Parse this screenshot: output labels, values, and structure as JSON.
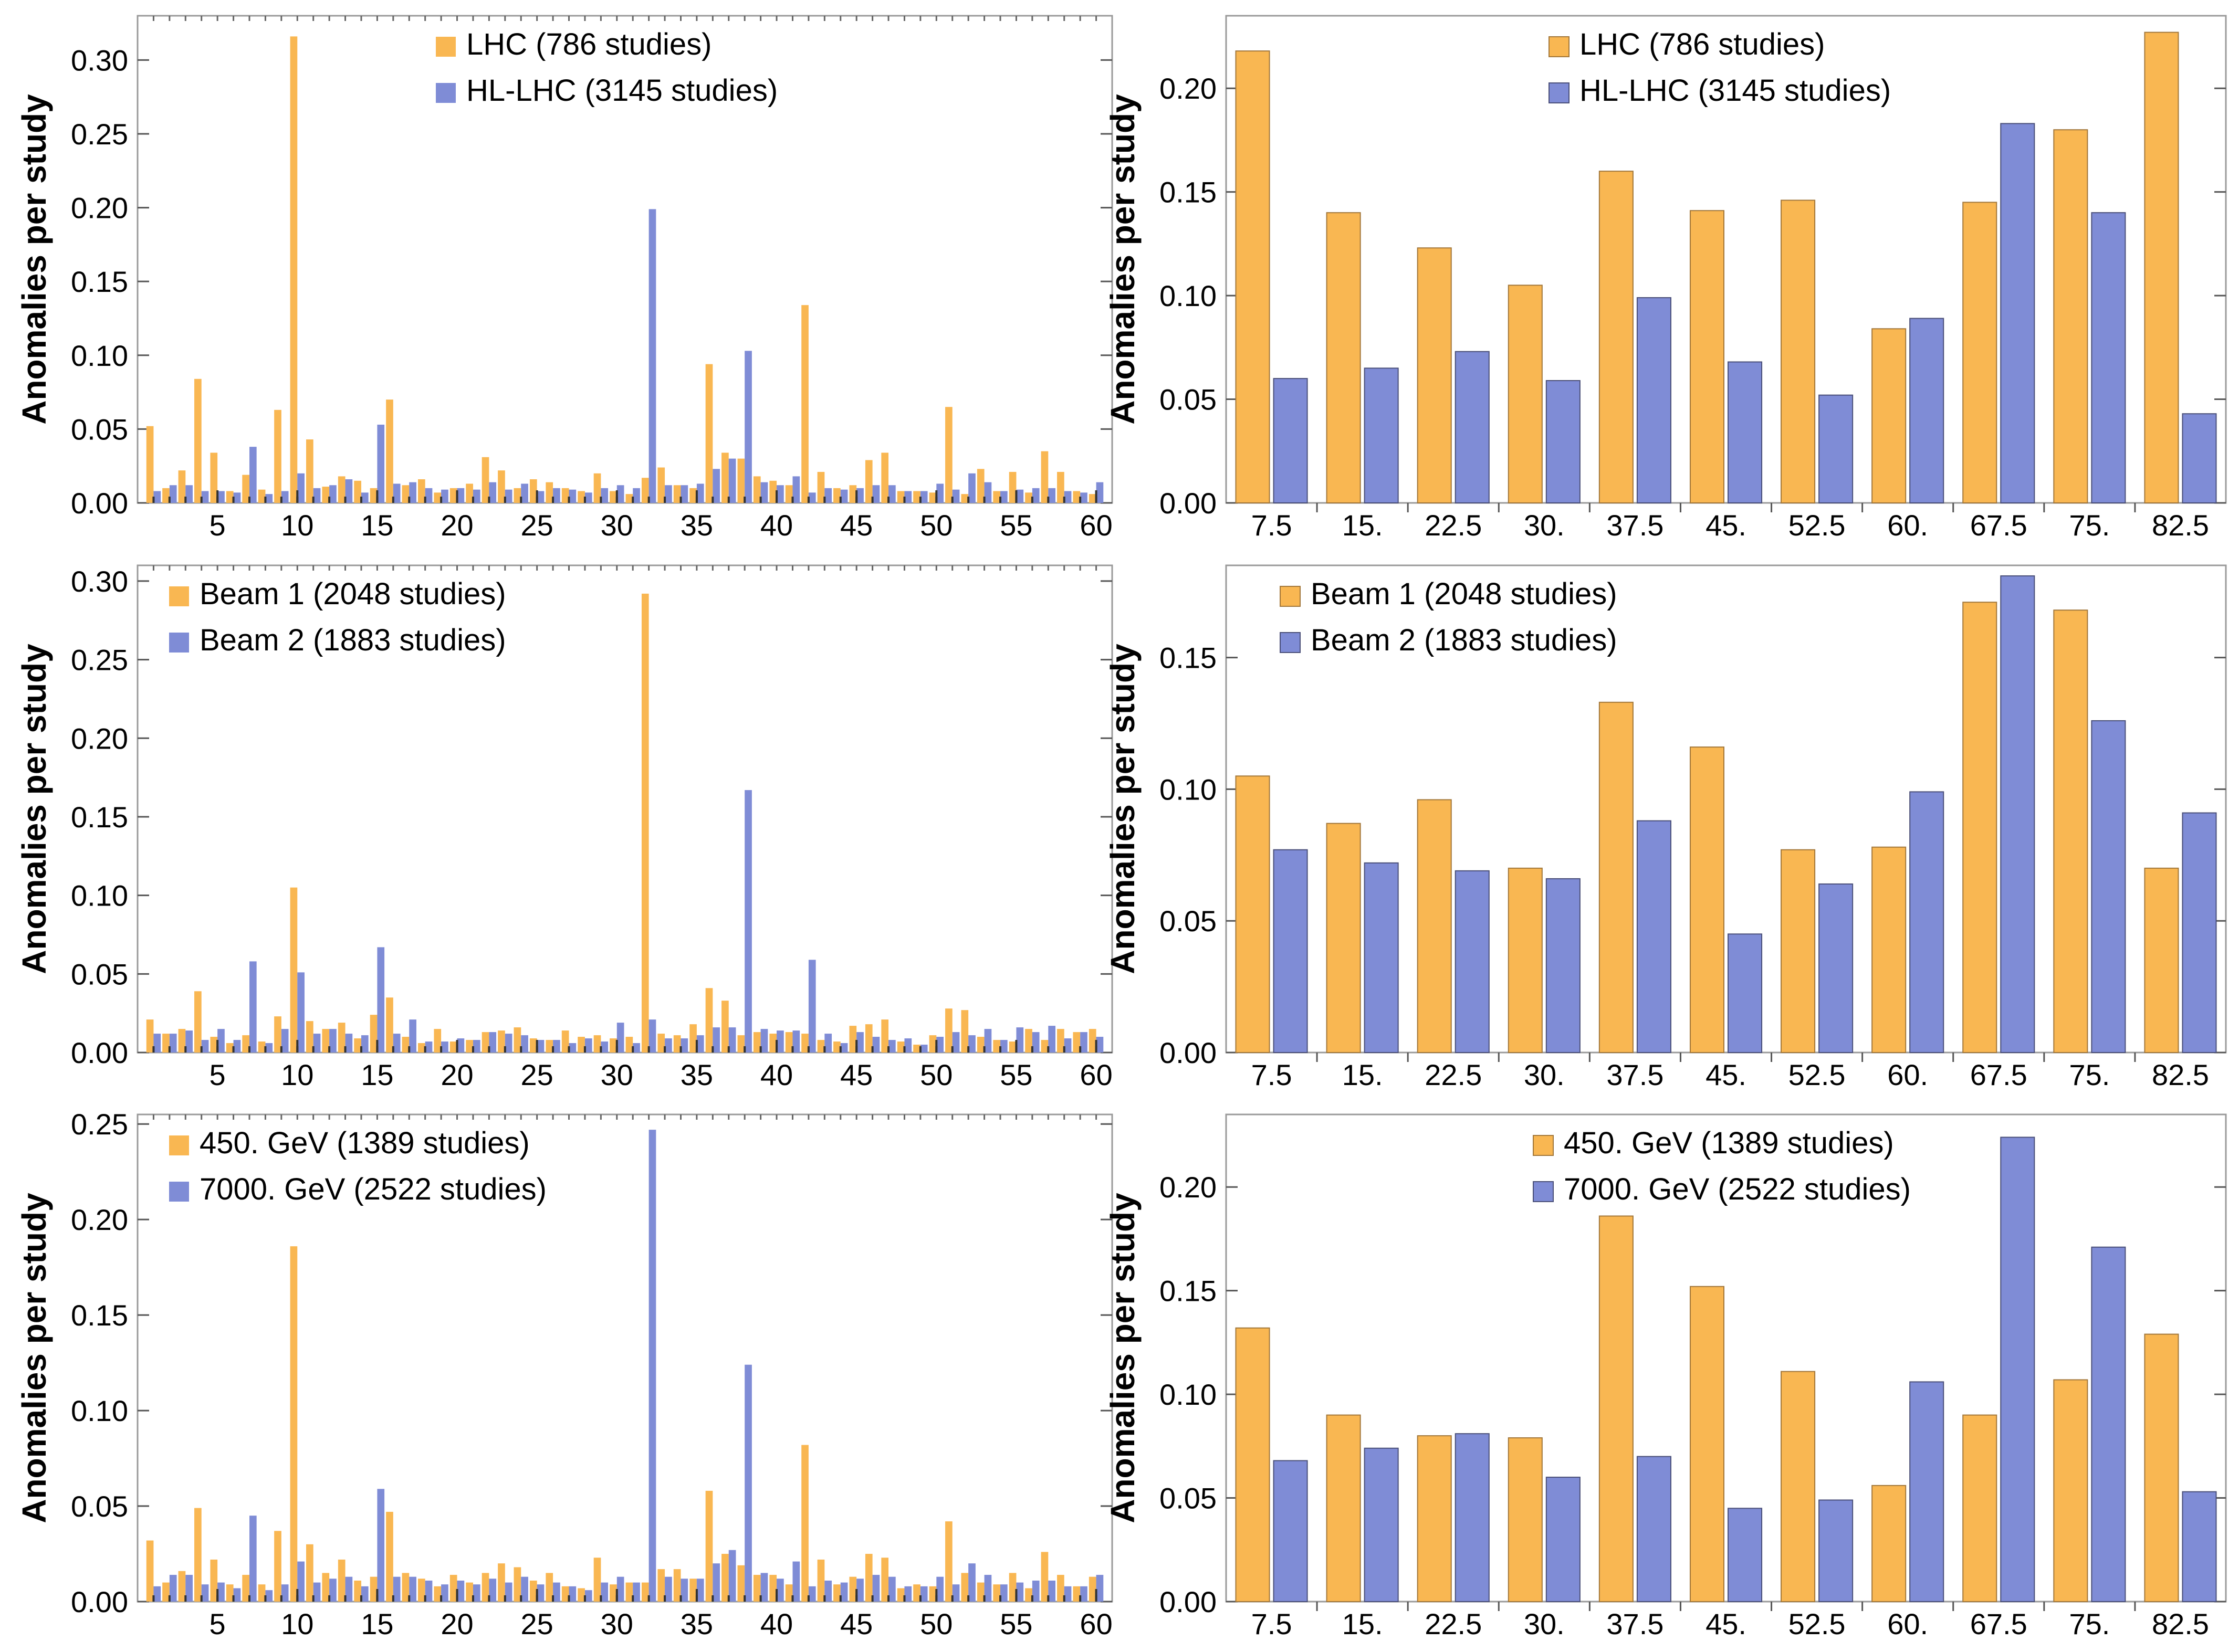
{
  "colors": {
    "orange": "#f9b752",
    "blue": "#7f8cd6",
    "orange_edge": "#a2773a",
    "blue_edge": "#4a4f78",
    "frame": "#9a9a9a"
  },
  "chart_data": [
    {
      "type": "bar",
      "ylabel": "Anomalies per study",
      "xlim": [
        0,
        61
      ],
      "ylim": [
        0,
        0.33
      ],
      "x_ticks": [
        5,
        10,
        15,
        20,
        25,
        30,
        35,
        40,
        45,
        50,
        55,
        60
      ],
      "y_ticks": [
        "0.00",
        "0.05",
        "0.10",
        "0.15",
        "0.20",
        "0.25",
        "0.30"
      ],
      "y_tick_values": [
        0,
        0.05,
        0.1,
        0.15,
        0.2,
        0.25,
        0.3
      ],
      "legend_position": "top-center",
      "categories": [
        1,
        2,
        3,
        4,
        5,
        6,
        7,
        8,
        9,
        10,
        11,
        12,
        13,
        14,
        15,
        16,
        17,
        18,
        19,
        20,
        21,
        22,
        23,
        24,
        25,
        26,
        27,
        28,
        29,
        30,
        31,
        32,
        33,
        34,
        35,
        36,
        37,
        38,
        39,
        40,
        41,
        42,
        43,
        44,
        45,
        46,
        47,
        48,
        49,
        50,
        51,
        52,
        53,
        54,
        55,
        56,
        57,
        58,
        59,
        60
      ],
      "series": [
        {
          "name": "LHC (786 studies)",
          "color": "orange",
          "values": [
            0.052,
            0.01,
            0.022,
            0.084,
            0.034,
            0.008,
            0.019,
            0.009,
            0.063,
            0.316,
            0.043,
            0.011,
            0.018,
            0.015,
            0.01,
            0.07,
            0.012,
            0.016,
            0.007,
            0.01,
            0.013,
            0.031,
            0.022,
            0.01,
            0.016,
            0.014,
            0.01,
            0.008,
            0.02,
            0.008,
            0.006,
            0.017,
            0.024,
            0.012,
            0.01,
            0.094,
            0.034,
            0.03,
            0.018,
            0.015,
            0.012,
            0.134,
            0.021,
            0.01,
            0.012,
            0.029,
            0.034,
            0.008,
            0.008,
            0.007,
            0.065,
            0.006,
            0.023,
            0.008,
            0.021,
            0.007,
            0.035,
            0.021,
            0.008,
            0.006
          ]
        },
        {
          "name": "HL-LHC (3145 studies)",
          "color": "blue",
          "values": [
            0.008,
            0.012,
            0.012,
            0.008,
            0.008,
            0.007,
            0.038,
            0.006,
            0.008,
            0.02,
            0.01,
            0.012,
            0.016,
            0.007,
            0.053,
            0.013,
            0.014,
            0.01,
            0.009,
            0.01,
            0.009,
            0.014,
            0.009,
            0.013,
            0.008,
            0.01,
            0.009,
            0.007,
            0.01,
            0.012,
            0.01,
            0.199,
            0.012,
            0.012,
            0.013,
            0.023,
            0.03,
            0.103,
            0.014,
            0.012,
            0.018,
            0.007,
            0.01,
            0.009,
            0.01,
            0.012,
            0.012,
            0.008,
            0.008,
            0.013,
            0.009,
            0.02,
            0.014,
            0.008,
            0.009,
            0.01,
            0.01,
            0.008,
            0.007,
            0.014
          ]
        }
      ]
    },
    {
      "type": "bar",
      "ylabel": "Anomalies per study",
      "ylim": [
        0,
        0.235
      ],
      "categories": [
        "7.5",
        "15.",
        "22.5",
        "30.",
        "37.5",
        "45.",
        "52.5",
        "60.",
        "67.5",
        "75.",
        "82.5"
      ],
      "y_ticks": [
        "0.00",
        "0.05",
        "0.10",
        "0.15",
        "0.20"
      ],
      "y_tick_values": [
        0,
        0.05,
        0.1,
        0.15,
        0.2
      ],
      "legend_position": "top-center",
      "series": [
        {
          "name": "LHC (786 studies)",
          "color": "orange",
          "values": [
            0.218,
            0.14,
            0.123,
            0.105,
            0.16,
            0.141,
            0.146,
            0.084,
            0.145,
            0.18,
            0.227
          ]
        },
        {
          "name": "HL-LHC (3145 studies)",
          "color": "blue",
          "values": [
            0.06,
            0.065,
            0.073,
            0.059,
            0.099,
            0.068,
            0.052,
            0.089,
            0.183,
            0.14,
            0.043
          ]
        }
      ]
    },
    {
      "type": "bar",
      "ylabel": "Anomalies per study",
      "xlim": [
        0,
        61
      ],
      "ylim": [
        0,
        0.31
      ],
      "x_ticks": [
        5,
        10,
        15,
        20,
        25,
        30,
        35,
        40,
        45,
        50,
        55,
        60
      ],
      "y_ticks": [
        "0.00",
        "0.05",
        "0.10",
        "0.15",
        "0.20",
        "0.25",
        "0.30"
      ],
      "y_tick_values": [
        0,
        0.05,
        0.1,
        0.15,
        0.2,
        0.25,
        0.3
      ],
      "legend_position": "top-left",
      "categories": [
        1,
        2,
        3,
        4,
        5,
        6,
        7,
        8,
        9,
        10,
        11,
        12,
        13,
        14,
        15,
        16,
        17,
        18,
        19,
        20,
        21,
        22,
        23,
        24,
        25,
        26,
        27,
        28,
        29,
        30,
        31,
        32,
        33,
        34,
        35,
        36,
        37,
        38,
        39,
        40,
        41,
        42,
        43,
        44,
        45,
        46,
        47,
        48,
        49,
        50,
        51,
        52,
        53,
        54,
        55,
        56,
        57,
        58,
        59,
        60
      ],
      "series": [
        {
          "name": "Beam 1 (2048 studies)",
          "color": "orange",
          "values": [
            0.021,
            0.012,
            0.015,
            0.039,
            0.01,
            0.006,
            0.011,
            0.007,
            0.023,
            0.105,
            0.02,
            0.015,
            0.019,
            0.009,
            0.024,
            0.035,
            0.01,
            0.006,
            0.015,
            0.007,
            0.008,
            0.013,
            0.014,
            0.016,
            0.009,
            0.008,
            0.014,
            0.01,
            0.011,
            0.009,
            0.01,
            0.292,
            0.012,
            0.011,
            0.018,
            0.041,
            0.033,
            0.011,
            0.013,
            0.012,
            0.013,
            0.012,
            0.008,
            0.007,
            0.017,
            0.018,
            0.021,
            0.007,
            0.005,
            0.011,
            0.028,
            0.027,
            0.01,
            0.008,
            0.007,
            0.015,
            0.008,
            0.015,
            0.013,
            0.015
          ]
        },
        {
          "name": "Beam 2 (1883 studies)",
          "color": "blue",
          "values": [
            0.012,
            0.012,
            0.014,
            0.008,
            0.015,
            0.008,
            0.058,
            0.006,
            0.015,
            0.051,
            0.012,
            0.015,
            0.012,
            0.011,
            0.067,
            0.012,
            0.021,
            0.007,
            0.007,
            0.009,
            0.008,
            0.013,
            0.012,
            0.011,
            0.008,
            0.008,
            0.006,
            0.009,
            0.007,
            0.019,
            0.006,
            0.021,
            0.009,
            0.009,
            0.011,
            0.016,
            0.016,
            0.167,
            0.015,
            0.014,
            0.014,
            0.059,
            0.012,
            0.006,
            0.013,
            0.01,
            0.008,
            0.009,
            0.005,
            0.01,
            0.013,
            0.011,
            0.015,
            0.008,
            0.016,
            0.013,
            0.017,
            0.009,
            0.013,
            0.01
          ]
        }
      ]
    },
    {
      "type": "bar",
      "ylabel": "Anomalies per study",
      "ylim": [
        0,
        0.185
      ],
      "categories": [
        "7.5",
        "15.",
        "22.5",
        "30.",
        "37.5",
        "45.",
        "52.5",
        "60.",
        "67.5",
        "75.",
        "82.5"
      ],
      "y_ticks": [
        "0.00",
        "0.05",
        "0.10",
        "0.15"
      ],
      "y_tick_values": [
        0,
        0.05,
        0.1,
        0.15
      ],
      "legend_position": "top-left",
      "series": [
        {
          "name": "Beam 1 (2048 studies)",
          "color": "orange",
          "values": [
            0.105,
            0.087,
            0.096,
            0.07,
            0.133,
            0.116,
            0.077,
            0.078,
            0.171,
            0.168,
            0.07
          ]
        },
        {
          "name": "Beam 2 (1883 studies)",
          "color": "blue",
          "values": [
            0.077,
            0.072,
            0.069,
            0.066,
            0.088,
            0.045,
            0.064,
            0.099,
            0.181,
            0.126,
            0.091
          ]
        }
      ]
    },
    {
      "type": "bar",
      "ylabel": "Anomalies per study",
      "xlim": [
        0,
        61
      ],
      "ylim": [
        0,
        0.255
      ],
      "x_ticks": [
        5,
        10,
        15,
        20,
        25,
        30,
        35,
        40,
        45,
        50,
        55,
        60
      ],
      "y_ticks": [
        "0.00",
        "0.05",
        "0.10",
        "0.15",
        "0.20",
        "0.25"
      ],
      "y_tick_values": [
        0,
        0.05,
        0.1,
        0.15,
        0.2,
        0.25
      ],
      "legend_position": "top-left",
      "categories": [
        1,
        2,
        3,
        4,
        5,
        6,
        7,
        8,
        9,
        10,
        11,
        12,
        13,
        14,
        15,
        16,
        17,
        18,
        19,
        20,
        21,
        22,
        23,
        24,
        25,
        26,
        27,
        28,
        29,
        30,
        31,
        32,
        33,
        34,
        35,
        36,
        37,
        38,
        39,
        40,
        41,
        42,
        43,
        44,
        45,
        46,
        47,
        48,
        49,
        50,
        51,
        52,
        53,
        54,
        55,
        56,
        57,
        58,
        59,
        60
      ],
      "series": [
        {
          "name": "450. GeV (1389 studies)",
          "color": "orange",
          "values": [
            0.032,
            0.01,
            0.016,
            0.049,
            0.022,
            0.009,
            0.014,
            0.009,
            0.037,
            0.186,
            0.03,
            0.015,
            0.022,
            0.011,
            0.013,
            0.047,
            0.015,
            0.012,
            0.008,
            0.014,
            0.01,
            0.015,
            0.02,
            0.018,
            0.011,
            0.015,
            0.008,
            0.007,
            0.023,
            0.009,
            0.01,
            0.01,
            0.017,
            0.017,
            0.012,
            0.058,
            0.025,
            0.019,
            0.014,
            0.014,
            0.009,
            0.082,
            0.022,
            0.009,
            0.013,
            0.025,
            0.023,
            0.007,
            0.009,
            0.008,
            0.042,
            0.015,
            0.01,
            0.009,
            0.015,
            0.007,
            0.026,
            0.014,
            0.008,
            0.013
          ]
        },
        {
          "name": "7000. GeV (2522 studies)",
          "color": "blue",
          "values": [
            0.008,
            0.014,
            0.014,
            0.009,
            0.01,
            0.007,
            0.045,
            0.006,
            0.009,
            0.021,
            0.01,
            0.012,
            0.013,
            0.008,
            0.059,
            0.013,
            0.013,
            0.011,
            0.009,
            0.011,
            0.009,
            0.012,
            0.01,
            0.013,
            0.009,
            0.01,
            0.008,
            0.006,
            0.01,
            0.013,
            0.01,
            0.247,
            0.013,
            0.012,
            0.012,
            0.02,
            0.027,
            0.124,
            0.015,
            0.012,
            0.021,
            0.008,
            0.011,
            0.01,
            0.012,
            0.014,
            0.013,
            0.008,
            0.008,
            0.013,
            0.009,
            0.02,
            0.014,
            0.009,
            0.01,
            0.011,
            0.011,
            0.008,
            0.008,
            0.014
          ]
        }
      ]
    },
    {
      "type": "bar",
      "ylabel": "Anomalies per study",
      "ylim": [
        0,
        0.235
      ],
      "categories": [
        "7.5",
        "15.",
        "22.5",
        "30.",
        "37.5",
        "45.",
        "52.5",
        "60.",
        "67.5",
        "75.",
        "82.5"
      ],
      "y_ticks": [
        "0.00",
        "0.05",
        "0.10",
        "0.15",
        "0.20"
      ],
      "y_tick_values": [
        0,
        0.05,
        0.1,
        0.15,
        0.2
      ],
      "legend_position": "top-center",
      "series": [
        {
          "name": "450. GeV (1389 studies)",
          "color": "orange",
          "values": [
            0.132,
            0.09,
            0.08,
            0.079,
            0.186,
            0.152,
            0.111,
            0.056,
            0.09,
            0.107,
            0.129
          ]
        },
        {
          "name": "7000. GeV (2522 studies)",
          "color": "blue",
          "values": [
            0.068,
            0.074,
            0.081,
            0.06,
            0.07,
            0.045,
            0.049,
            0.106,
            0.224,
            0.171,
            0.053
          ]
        }
      ]
    }
  ]
}
